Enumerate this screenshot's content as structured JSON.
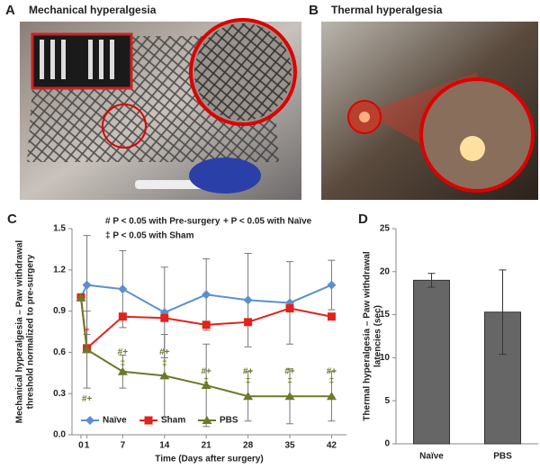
{
  "panels": [
    {
      "label": "A",
      "title": "Mechanical hyperalgesia"
    },
    {
      "label": "B",
      "title": "Thermal hyperalgesia"
    }
  ],
  "chart_data": [
    {
      "type": "line",
      "label": "C",
      "xlabel": "Time (Days after surgery)",
      "ylabel": [
        "Mechanical hyperalgesia – Paw withdrawal",
        "threshold normalized to pre-surgery"
      ],
      "x": [
        0,
        1,
        7,
        14,
        21,
        28,
        35,
        42
      ],
      "xlim": [
        -1.5,
        44.5
      ],
      "xticks": [
        0,
        1,
        7,
        14,
        21,
        28,
        35,
        42
      ],
      "ylim": [
        0,
        1.5
      ],
      "yticks": [
        {
          "value": 0,
          "label": "0.0"
        },
        0.3,
        0.6,
        0.9,
        1.2,
        1.5
      ],
      "legend": "bottom",
      "notes": [
        "# P < 0.05 with Pre-surgery",
        "+ P < 0.05 with Naïve",
        "‡ P < 0.05 with Sham"
      ],
      "series": [
        {
          "name": "Naïve",
          "color": "#5b8fd0",
          "marker": "diamond",
          "values": [
            1.0,
            1.09,
            1.06,
            0.89,
            1.02,
            0.98,
            0.96,
            1.09
          ],
          "errors": [
            0,
            0.36,
            0.28,
            0.33,
            0.26,
            0.34,
            0.3,
            0.18
          ]
        },
        {
          "name": "Sham",
          "color": "#e0231c",
          "marker": "square",
          "values": [
            1.0,
            0.63,
            0.86,
            0.85,
            0.8,
            0.82,
            0.92,
            0.86
          ]
        },
        {
          "name": "PBS",
          "color": "#6b7a2a",
          "marker": "triangle",
          "values": [
            1.0,
            0.62,
            0.46,
            0.43,
            0.36,
            0.28,
            0.28,
            0.28
          ],
          "errors": [
            0,
            0.28,
            0.12,
            0.3,
            0.3,
            0.18,
            0.2,
            0.18
          ]
        }
      ],
      "annotations": [
        {
          "text": "+",
          "x": 1,
          "y": 0.76,
          "color": "#e0231c"
        },
        {
          "text": "#+",
          "x": 1,
          "y": 0.26,
          "color": "#6b7a2a"
        },
        {
          "text": "#+",
          "x": 7,
          "y": 0.6,
          "color": "#6b7a2a"
        },
        {
          "text": "‡",
          "x": 7,
          "y": 0.52,
          "color": "#6b7a2a"
        },
        {
          "text": "#+",
          "x": 14,
          "y": 0.6,
          "color": "#6b7a2a"
        },
        {
          "text": "‡",
          "x": 14,
          "y": 0.52,
          "color": "#6b7a2a"
        },
        {
          "text": "#+",
          "x": 21,
          "y": 0.46,
          "color": "#6b7a2a"
        },
        {
          "text": "‡",
          "x": 21,
          "y": 0.39,
          "color": "#6b7a2a"
        },
        {
          "text": "#+",
          "x": 28,
          "y": 0.46,
          "color": "#6b7a2a"
        },
        {
          "text": "‡",
          "x": 28,
          "y": 0.39,
          "color": "#6b7a2a"
        },
        {
          "text": "#+",
          "x": 35,
          "y": 0.46,
          "color": "#6b7a2a"
        },
        {
          "text": "‡",
          "x": 35,
          "y": 0.39,
          "color": "#6b7a2a"
        },
        {
          "text": "#+",
          "x": 42,
          "y": 0.46,
          "color": "#6b7a2a"
        },
        {
          "text": "‡",
          "x": 42,
          "y": 0.39,
          "color": "#6b7a2a"
        }
      ]
    },
    {
      "type": "bar",
      "label": "D",
      "ylabel": [
        "Thermal hyperalgesia – Paw withdrawal",
        "latencies (sec)"
      ],
      "categories": [
        "Naïve",
        "PBS"
      ],
      "values": [
        19.0,
        15.3
      ],
      "errors": [
        0.8,
        4.9
      ],
      "color": "#666666",
      "ylim": [
        0,
        25
      ],
      "yticks": [
        0,
        5,
        10,
        15,
        20,
        25
      ]
    }
  ]
}
